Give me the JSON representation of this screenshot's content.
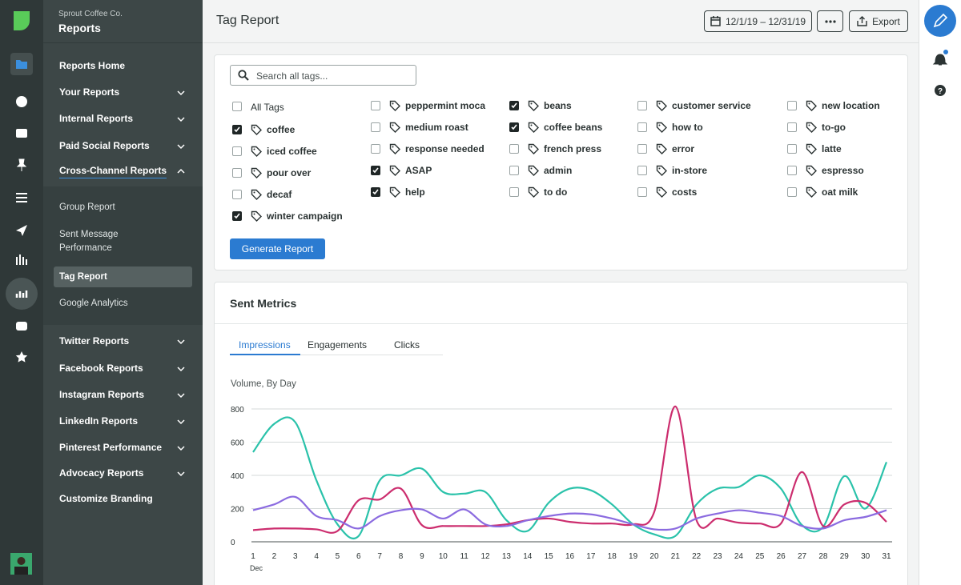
{
  "sidebar": {
    "org": "Sprout Coffee Co.",
    "title": "Reports",
    "items_top": [
      {
        "label": "Reports Home",
        "chevron": "none"
      },
      {
        "label": "Your Reports",
        "chevron": "down"
      },
      {
        "label": "Internal Reports",
        "chevron": "down"
      },
      {
        "label": "Paid Social Reports",
        "chevron": "down"
      },
      {
        "label": "Cross-Channel Reports",
        "chevron": "up"
      }
    ],
    "subitems": [
      "Group Report",
      "Sent Message Performance",
      "Tag Report",
      "Google Analytics"
    ],
    "active_subitem": 2,
    "items_bottom": [
      {
        "label": "Twitter Reports",
        "chevron": "down"
      },
      {
        "label": "Facebook Reports",
        "chevron": "down"
      },
      {
        "label": "Instagram Reports",
        "chevron": "down"
      },
      {
        "label": "LinkedIn Reports",
        "chevron": "down"
      },
      {
        "label": "Pinterest Performance",
        "chevron": "down"
      },
      {
        "label": "Advocacy Reports",
        "chevron": "down"
      },
      {
        "label": "Customize Branding",
        "chevron": "none"
      }
    ]
  },
  "header": {
    "title": "Tag Report",
    "date_range": "12/1/19 – 12/31/19",
    "export": "Export"
  },
  "tags": {
    "search_placeholder": "Search all tags...",
    "all_tags": {
      "label": "All Tags",
      "checked": false
    },
    "columns": [
      [
        {
          "label": "coffee",
          "checked": true
        },
        {
          "label": "iced coffee",
          "checked": false
        },
        {
          "label": "pour over",
          "checked": false
        },
        {
          "label": "decaf",
          "checked": false
        },
        {
          "label": "winter campaign",
          "checked": true
        }
      ],
      [
        {
          "label": "peppermint moca",
          "checked": false
        },
        {
          "label": "medium roast",
          "checked": false
        },
        {
          "label": "response needed",
          "checked": false
        },
        {
          "label": "ASAP",
          "checked": true
        },
        {
          "label": "help",
          "checked": true
        }
      ],
      [
        {
          "label": "beans",
          "checked": true
        },
        {
          "label": "coffee beans",
          "checked": true
        },
        {
          "label": "french press",
          "checked": false
        },
        {
          "label": "admin",
          "checked": false
        },
        {
          "label": "to do",
          "checked": false
        }
      ],
      [
        {
          "label": "customer service",
          "checked": false
        },
        {
          "label": "how to",
          "checked": false
        },
        {
          "label": "error",
          "checked": false
        },
        {
          "label": "in-store",
          "checked": false
        },
        {
          "label": "costs",
          "checked": false
        }
      ],
      [
        {
          "label": "new location",
          "checked": false
        },
        {
          "label": "to-go",
          "checked": false
        },
        {
          "label": "latte",
          "checked": false
        },
        {
          "label": "espresso",
          "checked": false
        },
        {
          "label": "oat milk",
          "checked": false
        }
      ]
    ],
    "button": "Generate Report"
  },
  "metrics": {
    "title": "Sent Metrics",
    "tabs": [
      "Impressions",
      "Engagements",
      "Clicks"
    ],
    "active_tab": 0
  },
  "chart_data": {
    "type": "line",
    "subtitle": "Volume, By Day",
    "x": [
      1,
      2,
      3,
      4,
      5,
      6,
      7,
      8,
      9,
      10,
      11,
      12,
      13,
      14,
      15,
      16,
      17,
      18,
      19,
      20,
      21,
      22,
      23,
      24,
      25,
      26,
      27,
      28,
      29,
      30,
      31
    ],
    "xlim": [
      1,
      31
    ],
    "xticks": [
      1,
      2,
      3,
      4,
      5,
      6,
      7,
      8,
      9,
      10,
      11,
      12,
      13,
      14,
      15,
      16,
      17,
      18,
      19,
      20,
      21,
      22,
      23,
      24,
      25,
      26,
      27,
      28,
      29,
      30,
      31
    ],
    "x_month": "Dec",
    "ylim": [
      0,
      800
    ],
    "yticks": [
      0,
      200,
      400,
      600,
      800
    ],
    "grid": true,
    "series": [
      {
        "color": "#2ac2aa",
        "values": [
          540,
          710,
          720,
          370,
          105,
          35,
          370,
          400,
          440,
          300,
          290,
          300,
          130,
          65,
          235,
          320,
          310,
          225,
          105,
          45,
          35,
          225,
          320,
          330,
          400,
          320,
          100,
          90,
          395,
          200,
          480
        ]
      },
      {
        "color": "#cc2d6e",
        "values": [
          70,
          80,
          80,
          75,
          65,
          250,
          255,
          320,
          100,
          95,
          95,
          95,
          105,
          130,
          140,
          120,
          110,
          110,
          105,
          180,
          815,
          130,
          140,
          115,
          110,
          110,
          420,
          95,
          225,
          235,
          120
        ]
      },
      {
        "color": "#8b6be0",
        "values": [
          190,
          225,
          270,
          155,
          130,
          80,
          155,
          190,
          195,
          140,
          195,
          105,
          95,
          130,
          155,
          170,
          165,
          140,
          105,
          75,
          80,
          140,
          170,
          190,
          175,
          155,
          95,
          80,
          130,
          150,
          190
        ]
      }
    ]
  }
}
